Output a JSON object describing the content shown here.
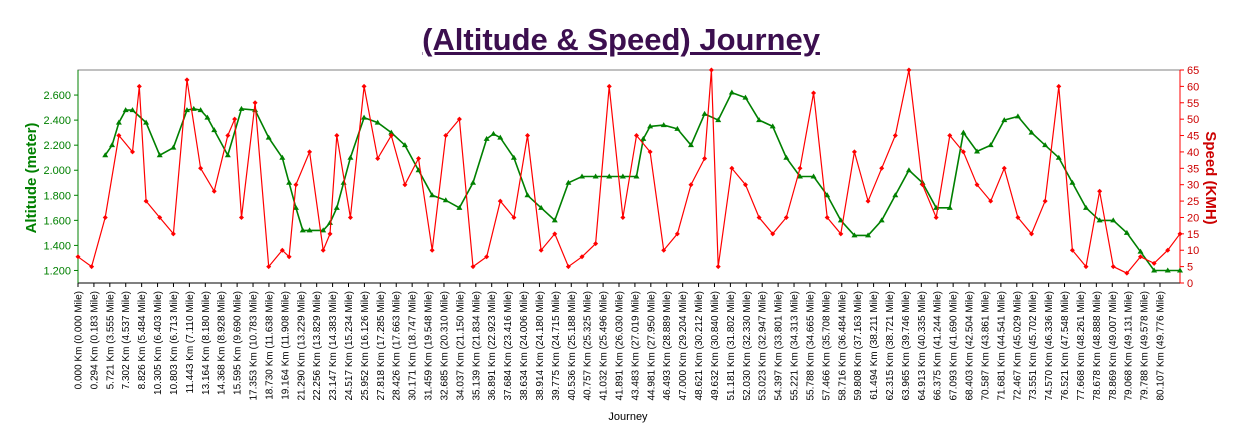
{
  "chart_data": {
    "type": "line",
    "title": "(Altitude & Speed) Journey",
    "xlabel": "Journey",
    "ylabel_left": "Altitude (meter)",
    "ylabel_right": "Speed (KMH)",
    "ylim_left": [
      1100,
      2800
    ],
    "ylim_right": [
      0,
      65
    ],
    "yticks_left": [
      1200,
      1400,
      1600,
      1800,
      2000,
      2200,
      2400,
      2600
    ],
    "yticks_left_labels": [
      "1.200",
      "1.400",
      "1.600",
      "1.800",
      "2.000",
      "2.200",
      "2.400",
      "2.600"
    ],
    "yticks_right": [
      0,
      5,
      10,
      15,
      20,
      25,
      30,
      35,
      40,
      45,
      50,
      55,
      60,
      65
    ],
    "xlim": [
      0,
      80.9
    ],
    "x_tick_labels": [
      "0.000 Km (0.000 Mile)",
      "0.294 Km (0.183 Mile)",
      "5.721 Km (3.555 Mile)",
      "7.302 Km (4.537 Mile)",
      "8.826 Km (5.484 Mile)",
      "10.305 Km (6.403 Mile)",
      "10.803 Km (6.713 Mile)",
      "11.443 Km (7.110 Mile)",
      "13.164 Km (8.180 Mile)",
      "14.368 Km (8.928 Mile)",
      "15.595 Km (9.690 Mile)",
      "17.353 Km (10.783 Mile)",
      "18.730 Km (11.638 Mile)",
      "19.164 Km (11.908 Mile)",
      "21.290 Km (13.229 Mile)",
      "22.256 Km (13.829 Mile)",
      "23.147 Km (14.383 Mile)",
      "24.517 Km (15.234 Mile)",
      "25.952 Km (16.126 Mile)",
      "27.818 Km (17.285 Mile)",
      "28.426 Km (17.663 Mile)",
      "30.171 Km (18.747 Mile)",
      "31.459 Km (19.548 Mile)",
      "32.685 Km (20.310 Mile)",
      "34.037 Km (21.150 Mile)",
      "35.139 Km (21.834 Mile)",
      "36.891 Km (22.923 Mile)",
      "37.684 Km (23.416 Mile)",
      "38.634 Km (24.006 Mile)",
      "38.914 Km (24.180 Mile)",
      "39.775 Km (24.715 Mile)",
      "40.536 Km (25.188 Mile)",
      "40.757 Km (25.325 Mile)",
      "41.032 Km (25.496 Mile)",
      "41.891 Km (26.030 Mile)",
      "43.483 Km (27.019 Mile)",
      "44.981 Km (27.950 Mile)",
      "46.493 Km (28.889 Mile)",
      "47.000 Km (29.204 Mile)",
      "48.621 Km (30.212 Mile)",
      "49.632 Km (30.840 Mile)",
      "51.181 Km (31.802 Mile)",
      "52.030 Km (32.330 Mile)",
      "53.023 Km (32.947 Mile)",
      "54.397 Km (33.801 Mile)",
      "55.221 Km (34.313 Mile)",
      "55.788 Km (34.665 Mile)",
      "57.466 Km (35.708 Mile)",
      "58.716 Km (36.484 Mile)",
      "59.808 Km (37.163 Mile)",
      "61.494 Km (38.211 Mile)",
      "62.315 Km (38.721 Mile)",
      "63.965 Km (39.746 Mile)",
      "64.913 Km (40.335 Mile)",
      "66.375 Km (41.244 Mile)",
      "67.093 Km (41.690 Mile)",
      "68.403 Km (42.504 Mile)",
      "70.587 Km (43.861 Mile)",
      "71.681 Km (44.541 Mile)",
      "72.467 Km (45.029 Mile)",
      "73.551 Km (45.702 Mile)",
      "74.570 Km (46.336 Mile)",
      "76.521 Km (47.548 Mile)",
      "77.668 Km (48.261 Mile)",
      "78.678 Km (48.888 Mile)",
      "78.869 Km (49.007 Mile)",
      "79.068 Km (49.131 Mile)",
      "79.788 Km (49.578 Mile)",
      "80.107 Km (49.776 Mile)"
    ],
    "grid": false,
    "series": [
      {
        "name": "Altitude (meter)",
        "axis": "left",
        "color": "#008000",
        "marker": "triangle",
        "x": [
          2.0,
          2.5,
          3.0,
          3.5,
          4.0,
          5.0,
          6.0,
          7.0,
          8.0,
          8.5,
          9.0,
          9.5,
          10.0,
          11.0,
          12.0,
          13.0,
          14.0,
          15.0,
          15.5,
          16.0,
          16.5,
          17.0,
          18.0,
          18.5,
          19.0,
          19.5,
          20.0,
          21.0,
          22.0,
          23.0,
          24.0,
          25.0,
          26.0,
          27.0,
          28.0,
          29.0,
          30.0,
          30.5,
          31.0,
          32.0,
          33.0,
          34.0,
          35.0,
          36.0,
          37.0,
          38.0,
          39.0,
          40.0,
          41.0,
          41.5,
          42.0,
          43.0,
          44.0,
          45.0,
          46.0,
          47.0,
          48.0,
          49.0,
          50.0,
          51.0,
          52.0,
          53.0,
          54.0,
          55.0,
          56.0,
          57.0,
          58.0,
          59.0,
          60.0,
          61.0,
          62.0,
          63.0,
          64.0,
          65.0,
          66.0,
          67.0,
          68.0,
          69.0,
          70.0,
          71.0,
          72.0,
          73.0,
          74.0,
          75.0,
          76.0,
          77.0,
          78.0,
          79.0,
          80.0,
          80.9
        ],
        "y": [
          2120,
          2200,
          2380,
          2480,
          2480,
          2380,
          2120,
          2180,
          2480,
          2490,
          2480,
          2420,
          2320,
          2120,
          2490,
          2480,
          2260,
          2100,
          1900,
          1700,
          1520,
          1520,
          1520,
          1580,
          1700,
          1900,
          2100,
          2420,
          2380,
          2300,
          2200,
          2000,
          1800,
          1760,
          1700,
          1900,
          2250,
          2290,
          2260,
          2100,
          1800,
          1700,
          1600,
          1900,
          1950,
          1950,
          1950,
          1950,
          1950,
          2250,
          2350,
          2360,
          2330,
          2200,
          2450,
          2400,
          2620,
          2580,
          2400,
          2350,
          2100,
          1950,
          1950,
          1800,
          1600,
          1480,
          1480,
          1600,
          1800,
          2000,
          1900,
          1700,
          1700,
          2300,
          2150,
          2200,
          2400,
          2430,
          2300,
          2200,
          2100,
          1900,
          1700,
          1600,
          1600,
          1500,
          1350,
          1200,
          1200,
          1200
        ]
      },
      {
        "name": "Speed (KMH)",
        "axis": "right",
        "color": "#ff0000",
        "marker": "diamond",
        "x": [
          0.0,
          1.0,
          2.0,
          3.0,
          4.0,
          4.5,
          5.0,
          6.0,
          7.0,
          8.0,
          9.0,
          10.0,
          11.0,
          11.5,
          12.0,
          13.0,
          14.0,
          15.0,
          15.5,
          16.0,
          17.0,
          18.0,
          18.5,
          19.0,
          20.0,
          21.0,
          22.0,
          23.0,
          24.0,
          25.0,
          26.0,
          27.0,
          28.0,
          29.0,
          30.0,
          31.0,
          32.0,
          33.0,
          34.0,
          35.0,
          36.0,
          37.0,
          38.0,
          39.0,
          40.0,
          41.0,
          42.0,
          43.0,
          44.0,
          45.0,
          46.0,
          46.5,
          47.0,
          48.0,
          49.0,
          50.0,
          51.0,
          52.0,
          53.0,
          54.0,
          55.0,
          56.0,
          57.0,
          58.0,
          59.0,
          60.0,
          61.0,
          62.0,
          63.0,
          64.0,
          65.0,
          66.0,
          67.0,
          68.0,
          69.0,
          70.0,
          71.0,
          72.0,
          73.0,
          74.0,
          75.0,
          76.0,
          77.0,
          78.0,
          79.0,
          80.0,
          80.9
        ],
        "y": [
          8,
          5,
          20,
          45,
          40,
          60,
          25,
          20,
          15,
          62,
          35,
          28,
          45,
          50,
          20,
          55,
          5,
          10,
          8,
          30,
          40,
          10,
          15,
          45,
          20,
          60,
          38,
          45,
          30,
          38,
          10,
          45,
          50,
          5,
          8,
          25,
          20,
          45,
          10,
          15,
          5,
          8,
          12,
          60,
          20,
          45,
          40,
          10,
          15,
          30,
          38,
          65,
          5,
          35,
          30,
          20,
          15,
          20,
          35,
          58,
          20,
          15,
          40,
          25,
          35,
          45,
          65,
          30,
          20,
          45,
          40,
          30,
          25,
          35,
          20,
          15,
          25,
          60,
          10,
          5,
          28,
          5,
          3,
          8,
          6,
          10,
          15
        ]
      }
    ]
  }
}
